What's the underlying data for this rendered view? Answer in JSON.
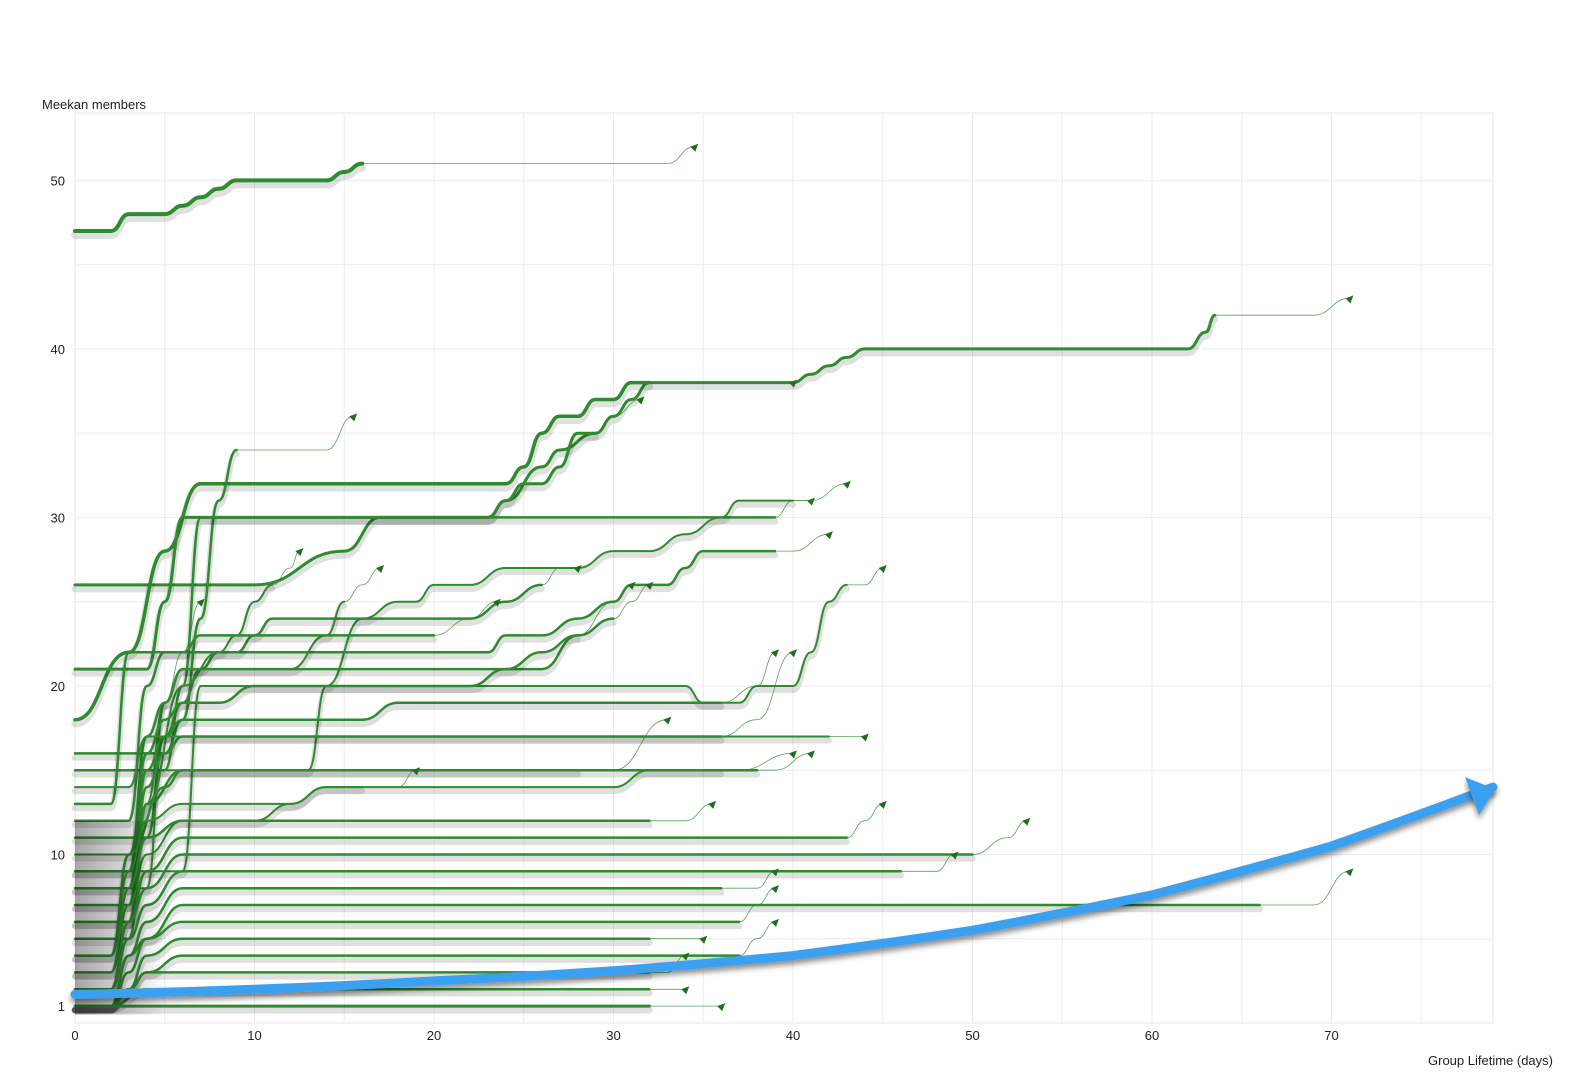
{
  "chart_data": {
    "type": "line",
    "ylabel": "Meekan members",
    "xlabel": "Group Lifetime (days)",
    "xlim": [
      0,
      79
    ],
    "ylim": [
      0,
      54
    ],
    "xticks": [
      0,
      10,
      20,
      30,
      40,
      50,
      60,
      70
    ],
    "yticks": [
      1,
      10,
      20,
      30,
      40,
      50
    ],
    "grid": true,
    "colors": {
      "line": "#2e8b2e",
      "trend": "#3aa0f0"
    },
    "series": [
      {
        "x": [
          0,
          2,
          3,
          5,
          6,
          7,
          8,
          9,
          14,
          15,
          16,
          33,
          34.5
        ],
        "y": [
          47,
          47,
          48,
          48,
          48.5,
          49,
          49.5,
          50,
          50,
          50.5,
          51,
          51,
          52
        ],
        "w": 4
      },
      {
        "x": [
          0,
          10,
          15,
          17,
          23,
          24,
          26,
          27,
          29,
          30,
          31,
          32,
          40,
          41,
          42,
          43,
          44,
          45,
          62,
          63,
          63.5,
          69,
          71
        ],
        "y": [
          26,
          26,
          28,
          30,
          30,
          31,
          33,
          34,
          35,
          36,
          37,
          38,
          38,
          38.5,
          39,
          39.5,
          40,
          40,
          40,
          41,
          42,
          42,
          43
        ],
        "w": 3
      },
      {
        "x": [
          0,
          3,
          5,
          7,
          24,
          25,
          26,
          27,
          28,
          29,
          30,
          31,
          32,
          33,
          40
        ],
        "y": [
          18,
          22,
          28,
          32,
          32,
          33,
          35,
          36,
          36,
          37,
          37,
          38,
          38,
          38,
          38
        ],
        "w": 3.5
      },
      {
        "x": [
          0,
          5,
          6,
          7,
          8,
          9,
          14,
          15.5
        ],
        "y": [
          16,
          16,
          18,
          24,
          31,
          34,
          34,
          36
        ],
        "w": 2.5
      },
      {
        "x": [
          0,
          4,
          5,
          6,
          16,
          22,
          23,
          24,
          25,
          26,
          27,
          28,
          29,
          30,
          31.5
        ],
        "y": [
          21,
          21,
          25,
          30,
          30,
          30,
          30,
          31,
          32,
          32,
          33,
          35,
          35,
          36,
          37
        ],
        "w": 3
      },
      {
        "x": [
          0,
          5,
          6,
          7,
          17,
          30,
          37,
          38,
          39,
          40,
          41
        ],
        "y": [
          15,
          15,
          20,
          30,
          30,
          30,
          30,
          30,
          30,
          31,
          31
        ],
        "w": 2.5
      },
      {
        "x": [
          0,
          3,
          4,
          13,
          14,
          16,
          18,
          19,
          20,
          22,
          24,
          26,
          28,
          30,
          32,
          34,
          36,
          37,
          40,
          41,
          43
        ],
        "y": [
          10,
          10,
          15,
          15,
          20,
          24,
          25,
          25,
          26,
          26,
          27,
          27,
          27,
          28,
          28,
          29,
          30,
          31,
          31,
          31,
          32
        ],
        "w": 2
      },
      {
        "x": [
          0,
          3,
          4,
          5,
          17,
          18,
          20,
          21,
          23,
          24,
          26,
          28,
          30,
          31,
          32,
          33,
          34,
          35,
          36,
          37,
          38,
          39,
          40,
          42
        ],
        "y": [
          12,
          12,
          20,
          22,
          22,
          22,
          22,
          22,
          22,
          23,
          23,
          24,
          25,
          26,
          26,
          26,
          27,
          28,
          28,
          28,
          28,
          28,
          28,
          29
        ],
        "w": 2.5
      },
      {
        "x": [
          0,
          6,
          7,
          18,
          20,
          22,
          24,
          26,
          28,
          30,
          32,
          34,
          35,
          36,
          37,
          38,
          40,
          41,
          42,
          43,
          44,
          45
        ],
        "y": [
          9,
          9,
          20,
          20,
          20,
          20,
          20,
          20,
          20,
          20,
          20,
          20,
          19,
          19,
          19,
          20,
          20,
          22,
          25,
          26,
          26,
          27
        ],
        "w": 2
      },
      {
        "x": [
          0,
          4,
          5,
          6,
          7,
          8,
          9,
          10,
          11,
          12,
          13,
          14,
          16,
          18,
          20,
          22,
          24,
          26,
          27,
          28
        ],
        "y": [
          11,
          11,
          17,
          19,
          21,
          22,
          22,
          23,
          24,
          24,
          24,
          24,
          24,
          24,
          24,
          24,
          25,
          26,
          27,
          27
        ],
        "w": 2.5
      },
      {
        "x": [
          0,
          4,
          5,
          6,
          12,
          14,
          15,
          16,
          17
        ],
        "y": [
          8,
          8,
          19,
          21,
          21,
          23,
          25,
          26,
          27
        ],
        "w": 2
      },
      {
        "x": [
          0,
          3,
          4,
          6,
          8,
          9,
          10,
          11,
          12,
          12.5
        ],
        "y": [
          7,
          7,
          13,
          20,
          22,
          23,
          25,
          26,
          27,
          28
        ],
        "w": 2
      },
      {
        "x": [
          0,
          3,
          4,
          5,
          6,
          7
        ],
        "y": [
          6,
          6,
          13,
          19,
          22,
          25
        ],
        "w": 2
      },
      {
        "x": [
          0,
          2,
          3,
          6,
          7,
          14,
          16,
          18,
          20,
          22,
          23.5
        ],
        "y": [
          13,
          13,
          22,
          22,
          23,
          23,
          23,
          23,
          23,
          24,
          25
        ],
        "w": 2.5
      },
      {
        "x": [
          0,
          3,
          4,
          5,
          6,
          12,
          14,
          15,
          22,
          26,
          28,
          30,
          31
        ],
        "y": [
          9,
          9,
          17,
          19,
          21,
          21,
          21,
          21,
          21,
          21,
          23,
          25,
          26
        ],
        "w": 2.5
      },
      {
        "x": [
          0,
          3,
          4,
          5,
          6,
          8,
          10,
          12,
          14,
          16,
          20,
          22,
          24,
          26,
          28,
          30,
          31,
          32
        ],
        "y": [
          8,
          8,
          16,
          18,
          19,
          19,
          20,
          20,
          20,
          20,
          20,
          20,
          21,
          22,
          23,
          24,
          25,
          26
        ],
        "w": 2.5
      },
      {
        "x": [
          0,
          3,
          4,
          5,
          6,
          8,
          10,
          12,
          16,
          18,
          20,
          22,
          24,
          26,
          28,
          30,
          32,
          34,
          36,
          38,
          39
        ],
        "y": [
          7,
          7,
          15,
          17,
          18,
          18,
          18,
          18,
          18,
          19,
          19,
          19,
          19,
          19,
          19,
          19,
          19,
          19,
          19,
          20,
          22
        ],
        "w": 2.5
      },
      {
        "x": [
          0,
          3,
          4,
          5,
          6,
          8,
          10,
          12,
          14,
          16,
          20,
          24,
          26,
          28,
          30,
          32,
          34,
          36,
          38,
          40
        ],
        "y": [
          6,
          6,
          14,
          16,
          17,
          17,
          17,
          17,
          17,
          17,
          17,
          17,
          17,
          17,
          17,
          17,
          17,
          17,
          18,
          22
        ],
        "w": 2.5
      },
      {
        "x": [
          0,
          3,
          4,
          6,
          8,
          9,
          10,
          14,
          20,
          24,
          26,
          28,
          30,
          32,
          34,
          35,
          36,
          37,
          38,
          39,
          41
        ],
        "y": [
          5,
          5,
          13,
          15,
          15,
          15,
          15,
          15,
          15,
          15,
          15,
          15,
          15,
          15,
          15,
          15,
          15,
          15,
          15,
          15,
          16
        ],
        "w": 2.5
      },
      {
        "x": [
          0,
          2,
          3,
          5,
          6,
          7,
          8,
          10,
          12,
          14,
          16,
          17,
          18,
          20,
          22,
          24,
          26,
          28,
          30,
          33
        ],
        "y": [
          4,
          4,
          10,
          14,
          15,
          15,
          15,
          15,
          15,
          15,
          15,
          15,
          15,
          15,
          15,
          15,
          15,
          15,
          15,
          18
        ],
        "w": 2.5
      },
      {
        "x": [
          0,
          2,
          3,
          4,
          6,
          8,
          10,
          12,
          14,
          16,
          20,
          24,
          26,
          28,
          30,
          32,
          34,
          36,
          37,
          40
        ],
        "y": [
          4,
          4,
          9,
          12,
          13,
          13,
          13,
          13,
          14,
          14,
          14,
          14,
          14,
          14,
          14,
          15,
          15,
          15,
          15,
          16
        ],
        "w": 2
      },
      {
        "x": [
          0,
          2,
          3,
          4,
          6,
          8,
          10,
          12,
          14,
          16,
          18,
          19
        ],
        "y": [
          3,
          3,
          7,
          10,
          12,
          12,
          12,
          13,
          14,
          14,
          14,
          15
        ],
        "w": 2
      },
      {
        "x": [
          0,
          2,
          3,
          4,
          6,
          8,
          10,
          14,
          16,
          18,
          20,
          22,
          24,
          26,
          28,
          30,
          32,
          34,
          35.5
        ],
        "y": [
          3,
          3,
          8,
          11,
          12,
          12,
          12,
          12,
          12,
          12,
          12,
          12,
          12,
          12,
          12,
          12,
          12,
          12,
          13
        ],
        "w": 2.5
      },
      {
        "x": [
          0,
          2,
          3,
          4,
          6,
          8,
          10,
          12,
          16,
          20,
          24,
          28,
          30,
          32,
          34,
          35,
          36,
          37,
          38,
          39,
          40,
          42,
          43,
          44,
          45
        ],
        "y": [
          2,
          2,
          6,
          9,
          11,
          11,
          11,
          11,
          11,
          11,
          11,
          11,
          11,
          11,
          11,
          11,
          11,
          11,
          11,
          11,
          11,
          11,
          11,
          12,
          13
        ],
        "w": 2.5
      },
      {
        "x": [
          0,
          2,
          3,
          4,
          6,
          8,
          10,
          14,
          20,
          26,
          30,
          34,
          36,
          38,
          40,
          42,
          44,
          46,
          48,
          50,
          52,
          53
        ],
        "y": [
          2,
          2,
          6,
          8,
          10,
          10,
          10,
          10,
          10,
          10,
          10,
          10,
          10,
          10,
          10,
          10,
          10,
          10,
          10,
          10,
          11,
          12
        ],
        "w": 2.5
      },
      {
        "x": [
          0,
          2,
          3,
          4,
          6,
          8,
          12,
          16,
          20,
          24,
          28,
          32,
          36,
          38,
          40,
          42,
          44,
          46,
          48,
          49
        ],
        "y": [
          2,
          2,
          5,
          7,
          9,
          9,
          9,
          9,
          9,
          9,
          9,
          9,
          9,
          9,
          9,
          9,
          9,
          9,
          9,
          10
        ],
        "w": 2.5
      },
      {
        "x": [
          0,
          2,
          3,
          4,
          6,
          8,
          12,
          16,
          20,
          24,
          28,
          32,
          34,
          36,
          38,
          39
        ],
        "y": [
          1,
          1,
          4,
          6,
          8,
          8,
          8,
          8,
          8,
          8,
          8,
          8,
          8,
          8,
          8,
          9
        ],
        "w": 2.5
      },
      {
        "x": [
          0,
          2,
          3,
          4,
          6,
          8,
          12,
          16,
          20,
          24,
          28,
          32,
          36,
          38,
          40,
          44,
          50,
          56,
          62,
          66,
          69,
          71
        ],
        "y": [
          1,
          1,
          4,
          5,
          7,
          7,
          7,
          7,
          7,
          7,
          7,
          7,
          7,
          7,
          7,
          7,
          7,
          7,
          7,
          7,
          7,
          9
        ],
        "w": 2.5
      },
      {
        "x": [
          0,
          2,
          3,
          4,
          6,
          8,
          12,
          16,
          20,
          24,
          28,
          32,
          35,
          36,
          37,
          38,
          39
        ],
        "y": [
          1,
          1,
          3,
          5,
          6,
          6,
          6,
          6,
          6,
          6,
          6,
          6,
          6,
          6,
          6,
          7,
          8
        ],
        "w": 2.5
      },
      {
        "x": [
          0,
          2,
          3,
          4,
          6,
          8,
          12,
          16,
          20,
          24,
          28,
          32,
          34,
          35
        ],
        "y": [
          1,
          1,
          2,
          4,
          5,
          5,
          5,
          5,
          5,
          5,
          5,
          5,
          5,
          5
        ],
        "w": 2.5
      },
      {
        "x": [
          0,
          2,
          3,
          4,
          6,
          8,
          12,
          16,
          20,
          24,
          28,
          30,
          32,
          34,
          35,
          36,
          37,
          38,
          39
        ],
        "y": [
          1,
          1,
          2,
          3,
          4,
          4,
          4,
          4,
          4,
          4,
          4,
          4,
          4,
          4,
          4,
          4,
          4,
          5,
          6
        ],
        "w": 2.5
      },
      {
        "x": [
          0,
          2,
          3,
          4,
          6,
          8,
          12,
          16,
          20,
          24,
          28,
          30,
          32,
          33,
          34
        ],
        "y": [
          1,
          1,
          2,
          3,
          3,
          3,
          3,
          3,
          3,
          3,
          3,
          3,
          3,
          3,
          4
        ],
        "w": 2.5
      },
      {
        "x": [
          0,
          2,
          4,
          6,
          8,
          12,
          16,
          20,
          24,
          26,
          28,
          30,
          32,
          33,
          34
        ],
        "y": [
          1,
          1,
          2,
          2,
          2,
          2,
          2,
          2,
          2,
          2,
          2,
          2,
          2,
          2,
          2
        ],
        "w": 2.5
      },
      {
        "x": [
          0,
          4,
          8,
          12,
          16,
          20,
          24,
          28,
          30,
          32,
          34,
          36
        ],
        "y": [
          1,
          1,
          1,
          1,
          1,
          1,
          1,
          1,
          1,
          1,
          1,
          1
        ],
        "w": 3
      },
      {
        "x": [
          0,
          3,
          4,
          5,
          6,
          10,
          14,
          16,
          17,
          18,
          22,
          26,
          28,
          30,
          32,
          34,
          35,
          36,
          37,
          38,
          40,
          42,
          43,
          44
        ],
        "y": [
          14,
          14,
          17,
          17,
          17,
          17,
          17,
          17,
          17,
          17,
          17,
          17,
          17,
          17,
          17,
          17,
          17,
          17,
          17,
          17,
          17,
          17,
          17,
          17
        ],
        "w": 0
      }
    ],
    "trend": {
      "x": [
        0,
        10,
        20,
        30,
        40,
        50,
        60,
        70,
        79
      ],
      "y": [
        1.7,
        2.0,
        2.5,
        3.1,
        4.0,
        5.5,
        7.6,
        10.5,
        14
      ]
    }
  }
}
